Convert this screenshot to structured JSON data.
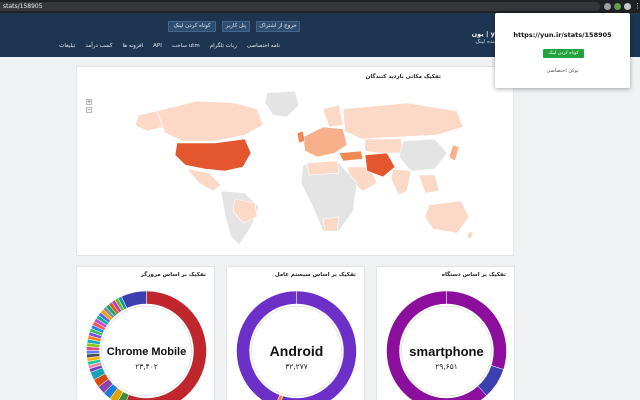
{
  "browser": {
    "url": "stats/158905",
    "icons": [
      "extension-icon",
      "extension-icon",
      "profile-icon",
      "menu-icon"
    ]
  },
  "header": {
    "brand_title": "یون | yun.ir",
    "brand_subtitle": "کوتاه کننده لینک",
    "buttons": {
      "shorten": "کوتاه کردن لینک",
      "panel": "پنل کاربر",
      "unsubscribe": "خروج از اشتراک"
    },
    "nav": [
      "نامه اختصاصی",
      "ربات تلگرام",
      "ساخت utm",
      "API",
      "افزونه ها",
      "کسب درآمد",
      "تبلیغات"
    ]
  },
  "popup": {
    "url": "https://yun.ir/stats/158905",
    "button": "کوتاه کردن لینک",
    "link": "توکن اختصاصی"
  },
  "map": {
    "title": "تفکیک مکانی بازدید کنندگان",
    "zoom_in": "+",
    "zoom_out": "−",
    "colors": {
      "land": "#e4e4e4",
      "low": "#fbd9c6",
      "mid": "#f7b08a",
      "high": "#f08a55",
      "top": "#e4572e"
    }
  },
  "charts": {
    "browser": {
      "title": "تفکیک بر اساس مرورگر",
      "label": "Chrome Mobile",
      "count": "۲۳,۴۰۲"
    },
    "os": {
      "title": "تفکیک بر اساس سیستم عامل",
      "label": "Android",
      "count": "۳۲,۲۷۷"
    },
    "device": {
      "title": "تفکیک بر اساس دستگاه",
      "label": "smartphone",
      "count": "۲۹,۶۵۱"
    }
  },
  "colors": {
    "header_bg": "#1e3551",
    "browser_main": "#c0272d",
    "os_main": "#6c30c9",
    "device_main": "#8b0f9c",
    "device_secondary": "#3b3fb0"
  }
}
